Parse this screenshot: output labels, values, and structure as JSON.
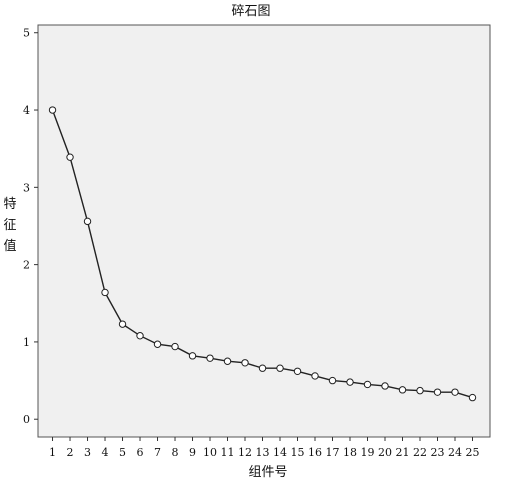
{
  "chart_data": {
    "type": "line",
    "title": "碎石图",
    "xlabel": "组件号",
    "ylabel": "特征值",
    "x": [
      1,
      2,
      3,
      4,
      5,
      6,
      7,
      8,
      9,
      10,
      11,
      12,
      13,
      14,
      15,
      16,
      17,
      18,
      19,
      20,
      21,
      22,
      23,
      24,
      25
    ],
    "y": [
      4.0,
      3.39,
      2.56,
      1.64,
      1.23,
      1.08,
      0.97,
      0.94,
      0.82,
      0.79,
      0.75,
      0.73,
      0.66,
      0.66,
      0.62,
      0.56,
      0.5,
      0.48,
      0.45,
      0.43,
      0.38,
      0.37,
      0.35,
      0.35,
      0.28
    ],
    "xlim": [
      0.17,
      26.0
    ],
    "ylim": [
      -0.23,
      5.1
    ],
    "yticks": [
      0,
      1,
      2,
      3,
      4,
      5
    ],
    "marker": "open-circle",
    "grid": false,
    "plot_background": "#f0f0f0",
    "line_color": "#222222"
  }
}
